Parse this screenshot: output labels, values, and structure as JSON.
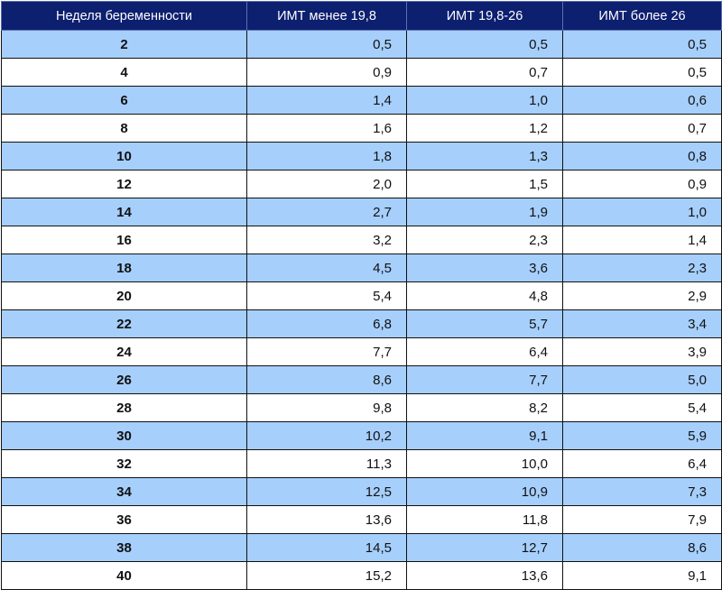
{
  "table": {
    "headers": [
      "Неделя беременности",
      "ИМТ менее 19,8",
      "ИМТ 19,8-26",
      "ИМТ более 26"
    ],
    "rows": [
      [
        "2",
        "0,5",
        "0,5",
        "0,5"
      ],
      [
        "4",
        "0,9",
        "0,7",
        "0,5"
      ],
      [
        "6",
        "1,4",
        "1,0",
        "0,6"
      ],
      [
        "8",
        "1,6",
        "1,2",
        "0,7"
      ],
      [
        "10",
        "1,8",
        "1,3",
        "0,8"
      ],
      [
        "12",
        "2,0",
        "1,5",
        "0,9"
      ],
      [
        "14",
        "2,7",
        "1,9",
        "1,0"
      ],
      [
        "16",
        "3,2",
        "2,3",
        "1,4"
      ],
      [
        "18",
        "4,5",
        "3,6",
        "2,3"
      ],
      [
        "20",
        "5,4",
        "4,8",
        "2,9"
      ],
      [
        "22",
        "6,8",
        "5,7",
        "3,4"
      ],
      [
        "24",
        "7,7",
        "6,4",
        "3,9"
      ],
      [
        "26",
        "8,6",
        "7,7",
        "5,0"
      ],
      [
        "28",
        "9,8",
        "8,2",
        "5,4"
      ],
      [
        "30",
        "10,2",
        "9,1",
        "5,9"
      ],
      [
        "32",
        "11,3",
        "10,0",
        "6,4"
      ],
      [
        "34",
        "12,5",
        "10,9",
        "7,3"
      ],
      [
        "36",
        "13,6",
        "11,8",
        "7,9"
      ],
      [
        "38",
        "14,5",
        "12,7",
        "8,6"
      ],
      [
        "40",
        "15,2",
        "13,6",
        "9,1"
      ]
    ]
  },
  "colors": {
    "header_bg": "#0d1f6f",
    "stripe_blue": "#a6cffc",
    "stripe_white": "#ffffff"
  }
}
